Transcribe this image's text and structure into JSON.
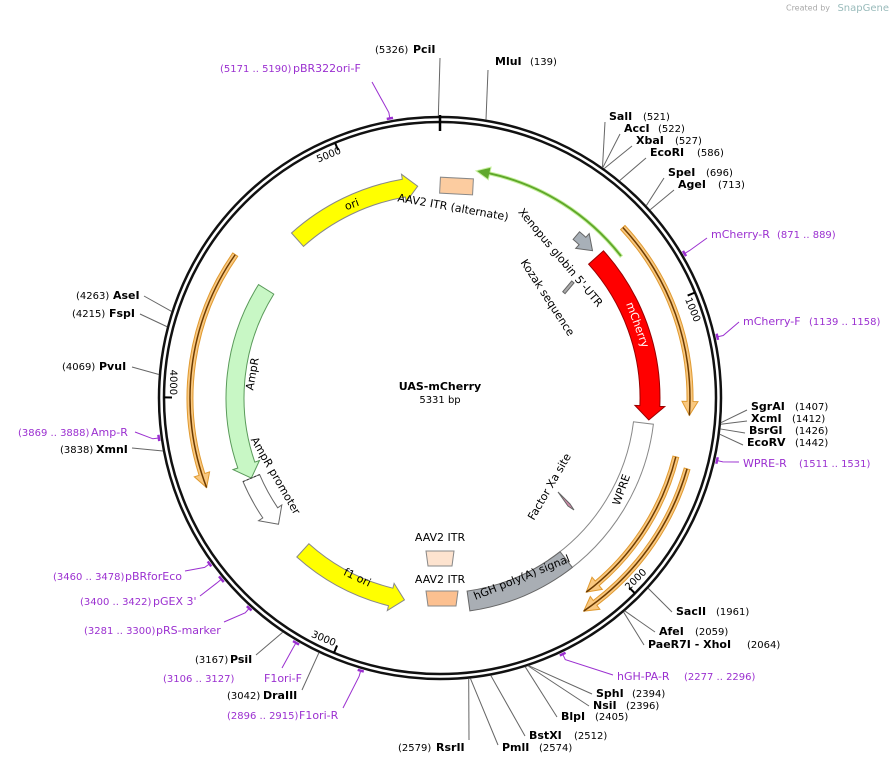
{
  "watermark": {
    "prefix": "Created by",
    "brand": "SnapGene"
  },
  "map": {
    "name": "UAS-mCherry",
    "length": {
      "value": 5331,
      "label": "5331 bp"
    },
    "ticks": [
      1000,
      2000,
      3000,
      4000,
      5000
    ],
    "sites": [
      {
        "name": "PciI",
        "position": {
          "value": 5326,
          "label": "(5326)"
        }
      },
      {
        "name": "MluI",
        "position": {
          "value": 139,
          "label": "(139)"
        }
      },
      {
        "name": "SalI",
        "position": {
          "value": 521,
          "label": "(521)"
        }
      },
      {
        "name": "AccI",
        "position": {
          "value": 522,
          "label": "(522)"
        }
      },
      {
        "name": "XbaI",
        "position": {
          "value": 527,
          "label": "(527)"
        }
      },
      {
        "name": "EcoRI",
        "position": {
          "value": 586,
          "label": "(586)"
        }
      },
      {
        "name": "SpeI",
        "position": {
          "value": 696,
          "label": "(696)"
        }
      },
      {
        "name": "AgeI",
        "position": {
          "value": 713,
          "label": "(713)"
        }
      },
      {
        "name": "SgrAI",
        "position": {
          "value": 1407,
          "label": "(1407)"
        }
      },
      {
        "name": "XcmI",
        "position": {
          "value": 1412,
          "label": "(1412)"
        }
      },
      {
        "name": "BsrGI",
        "position": {
          "value": 1426,
          "label": "(1426)"
        }
      },
      {
        "name": "EcoRV",
        "position": {
          "value": 1442,
          "label": "(1442)"
        }
      },
      {
        "name": "SacII",
        "position": {
          "value": 1961,
          "label": "(1961)"
        }
      },
      {
        "name": "AfeI",
        "position": {
          "value": 2059,
          "label": "(2059)"
        }
      },
      {
        "name": "PaeR7I - XhoI",
        "position": {
          "value": 2064,
          "label": "(2064)"
        }
      },
      {
        "name": "SphI",
        "position": {
          "value": 2394,
          "label": "(2394)"
        }
      },
      {
        "name": "NsiI",
        "position": {
          "value": 2396,
          "label": "(2396)"
        }
      },
      {
        "name": "BlpI",
        "position": {
          "value": 2405,
          "label": "(2405)"
        }
      },
      {
        "name": "BstXI",
        "position": {
          "value": 2512,
          "label": "(2512)"
        }
      },
      {
        "name": "PmlI",
        "position": {
          "value": 2574,
          "label": "(2574)"
        }
      },
      {
        "name": "RsrII",
        "position": {
          "value": 2579,
          "label": "(2579)"
        }
      },
      {
        "name": "DraIII",
        "position": {
          "value": 3042,
          "label": "(3042)"
        }
      },
      {
        "name": "PsiI",
        "position": {
          "value": 3167,
          "label": "(3167)"
        }
      },
      {
        "name": "XmnI",
        "position": {
          "value": 3838,
          "label": "(3838)"
        }
      },
      {
        "name": "PvuI",
        "position": {
          "value": 4069,
          "label": "(4069)"
        }
      },
      {
        "name": "FspI",
        "position": {
          "value": 4215,
          "label": "(4215)"
        }
      },
      {
        "name": "AseI",
        "position": {
          "value": 4263,
          "label": "(4263)"
        }
      }
    ],
    "primers": [
      {
        "name": "pBR322ori-F",
        "start": 5171,
        "end": 5190,
        "range_label": "(5171 .. 5190)"
      },
      {
        "name": "mCherry-R",
        "start": 871,
        "end": 889,
        "range_label": "(871 .. 889)"
      },
      {
        "name": "mCherry-F",
        "start": 1139,
        "end": 1158,
        "range_label": "(1139 .. 1158)"
      },
      {
        "name": "WPRE-R",
        "start": 1511,
        "end": 1531,
        "range_label": "(1511 .. 1531)"
      },
      {
        "name": "hGH-PA-R",
        "start": 2277,
        "end": 2296,
        "range_label": "(2277 .. 2296)"
      },
      {
        "name": "F1ori-R",
        "start": 2896,
        "end": 2915,
        "range_label": "(2896 .. 2915)"
      },
      {
        "name": "F1ori-F",
        "start": 3106,
        "end": 3127,
        "range_label": "(3106 .. 3127)"
      },
      {
        "name": "pRS-marker",
        "start": 3281,
        "end": 3300,
        "range_label": "(3281 .. 3300)"
      },
      {
        "name": "pGEX 3'",
        "start": 3400,
        "end": 3422,
        "range_label": "(3400 .. 3422)"
      },
      {
        "name": "pBRforEco",
        "start": 3460,
        "end": 3478,
        "range_label": "(3460 .. 3478)"
      },
      {
        "name": "Amp-R",
        "start": 3869,
        "end": 3888,
        "range_label": "(3869 .. 3888)"
      }
    ],
    "features": [
      "AAV2 ITR (alternate)",
      "Xenopus globin 5'-UTR",
      "Kozak sequence",
      "mCherry",
      "Factor Xa site",
      "WPRE",
      "hGH poly(A) signal",
      "AAV2 ITR",
      "AAV2 ITR",
      "f1 ori",
      "AmpR promoter",
      "AmpR",
      "ori"
    ]
  }
}
